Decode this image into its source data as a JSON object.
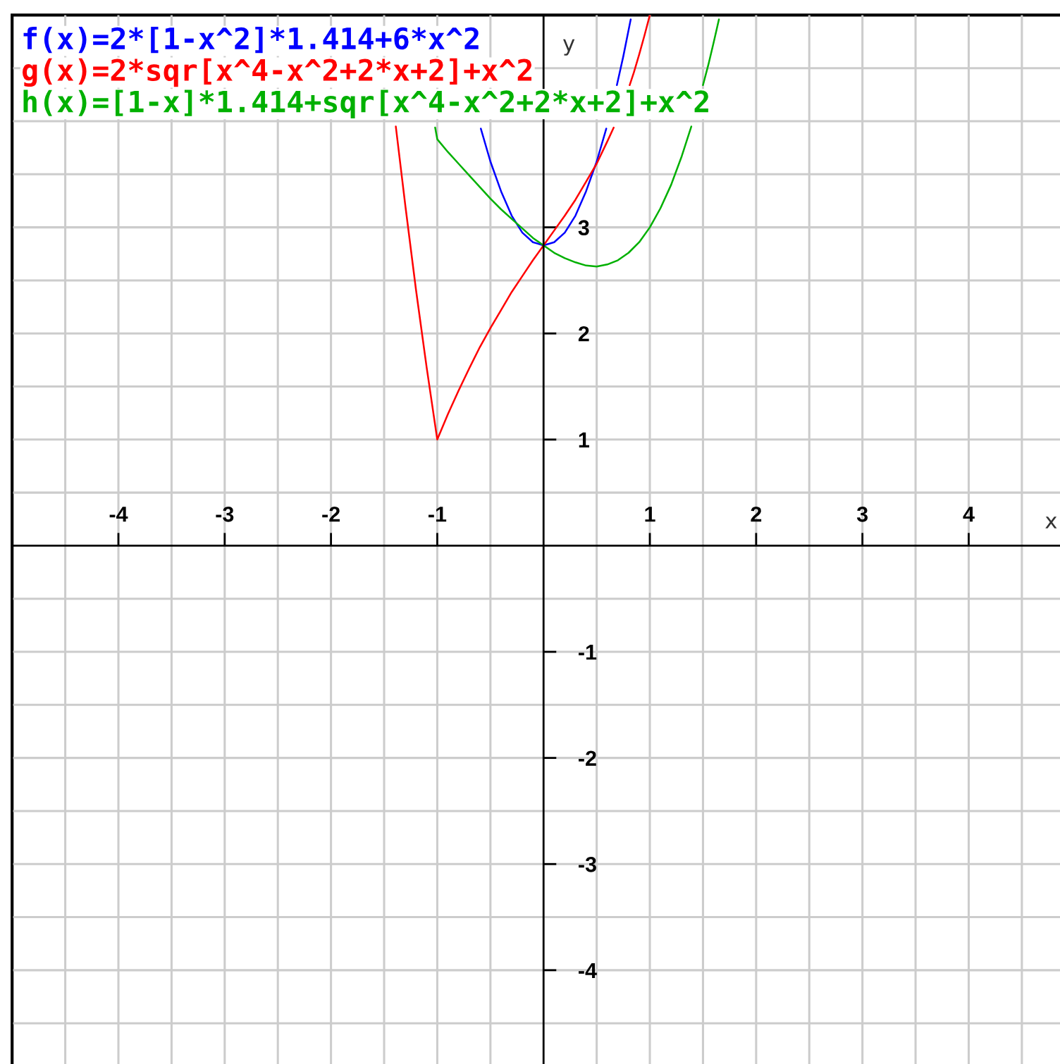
{
  "chart_data": {
    "type": "line",
    "xlabel": "x",
    "ylabel": "y",
    "xlim": [
      -5,
      4.9
    ],
    "ylim": [
      -4.9,
      5
    ],
    "xticks": [
      {
        "value": -4.5,
        "label": null
      },
      -4,
      {
        "value": -3.5,
        "label": null
      },
      -3,
      {
        "value": -2.5,
        "label": null
      },
      -2,
      {
        "value": -1.5,
        "label": null
      },
      -1,
      {
        "value": -0.5,
        "label": null
      },
      {
        "value": 0.5,
        "label": null
      },
      1,
      {
        "value": 1.5,
        "label": null
      },
      2,
      {
        "value": 2.5,
        "label": null
      },
      3,
      {
        "value": 3.5,
        "label": null
      },
      4,
      {
        "value": 4.5,
        "label": null
      }
    ],
    "yticks": [
      {
        "value": -4.5,
        "label": null
      },
      -4,
      {
        "value": -3.5,
        "label": null
      },
      -3,
      {
        "value": -2.5,
        "label": null
      },
      -2,
      {
        "value": -1.5,
        "label": null
      },
      -1,
      {
        "value": -0.5,
        "label": null
      },
      {
        "value": 0.5,
        "label": null
      },
      1,
      {
        "value": 1.5,
        "label": null
      },
      2,
      {
        "value": 2.5,
        "label": null
      },
      3,
      {
        "value": 3.5,
        "label": null
      },
      {
        "value": 4,
        "label": null
      },
      {
        "value": 4.5,
        "label": null
      }
    ],
    "grid": true,
    "legend": "top left",
    "series": [
      {
        "name": "f(x)=2*[1-x^2]*1.414+6*x^2",
        "color": "#0000ff",
        "x": [
          -0.59,
          -0.5,
          -0.4,
          -0.3,
          -0.2,
          -0.1,
          0,
          0.1,
          0.2,
          0.3,
          0.4,
          0.5,
          0.59,
          0.64,
          0.69,
          0.75,
          0.8,
          0.82
        ],
        "values": [
          3.93,
          3.62,
          3.34,
          3.11,
          2.95,
          2.86,
          2.83,
          2.86,
          2.95,
          3.11,
          3.34,
          3.62,
          3.93,
          null,
          4.34,
          4.61,
          4.86,
          4.96
        ]
      },
      {
        "name": "g(x)=2*sqr[x^4-x^2+2*x+2]+x^2",
        "color": "#ff0000",
        "x": [
          -1.39,
          -1.3,
          -1.2,
          -1.1,
          -1.0,
          -0.9,
          -0.8,
          -0.7,
          -0.6,
          -0.5,
          -0.4,
          -0.3,
          -0.2,
          -0.1,
          0,
          0.1,
          0.2,
          0.3,
          0.4,
          0.5,
          0.6,
          0.66,
          0.74,
          0.81,
          0.85,
          0.9,
          0.95,
          1.0
        ],
        "values": [
          3.95,
          3.2,
          2.41,
          1.68,
          1.0,
          1.24,
          1.46,
          1.67,
          1.87,
          2.05,
          2.22,
          2.39,
          2.54,
          2.69,
          2.83,
          2.97,
          3.11,
          3.26,
          3.43,
          3.6,
          3.81,
          3.94,
          null,
          4.34,
          4.46,
          4.63,
          4.81,
          5.0
        ]
      },
      {
        "name": "h(x)=[1-x]*1.414+sqr[x^4-x^2+2*x+2]+x^2",
        "color": "#00b000",
        "x": [
          -1.02,
          -1.0,
          -0.9,
          -0.8,
          -0.7,
          -0.6,
          -0.5,
          -0.4,
          -0.3,
          -0.2,
          -0.1,
          0,
          0.1,
          0.2,
          0.3,
          0.4,
          0.5,
          0.6,
          0.7,
          0.8,
          0.9,
          1.0,
          1.1,
          1.2,
          1.3,
          1.39,
          1.45,
          1.5,
          1.55,
          1.6,
          1.65
        ],
        "values": [
          3.94,
          3.83,
          3.71,
          3.6,
          3.49,
          3.38,
          3.27,
          3.17,
          3.08,
          2.99,
          2.9,
          2.83,
          2.76,
          2.71,
          2.67,
          2.64,
          2.63,
          2.65,
          2.69,
          2.76,
          2.86,
          3.0,
          3.18,
          3.4,
          3.67,
          3.95,
          null,
          4.34,
          4.53,
          4.74,
          4.96
        ]
      }
    ]
  }
}
